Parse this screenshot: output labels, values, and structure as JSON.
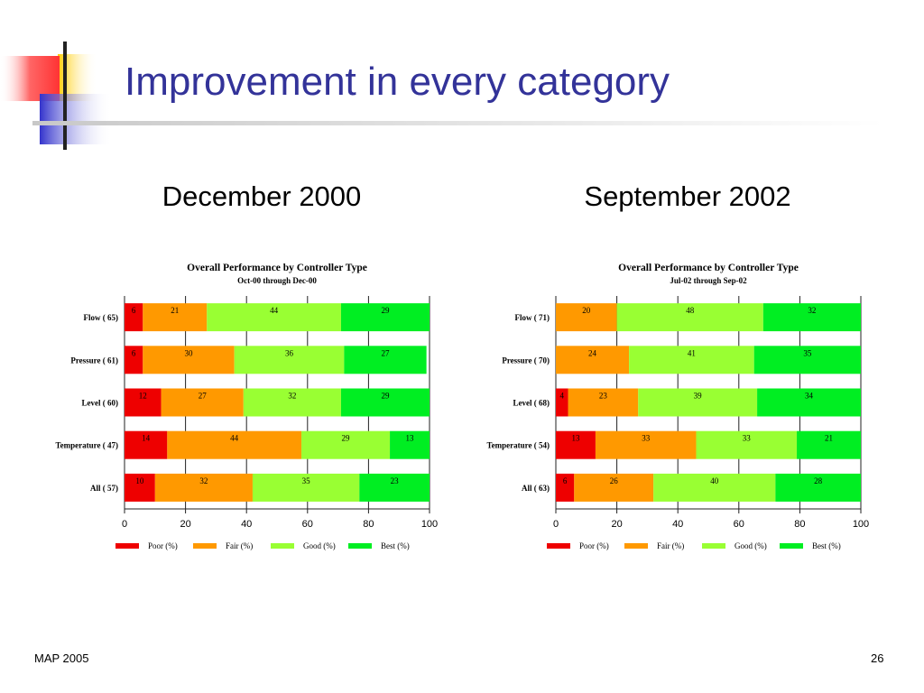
{
  "slide": {
    "title": "Improvement in every category",
    "footer_left": "MAP 2005",
    "page_number": "26"
  },
  "panels": [
    {
      "period": "December 2000"
    },
    {
      "period": "September 2002"
    }
  ],
  "chart_data": [
    {
      "type": "bar",
      "orientation": "horizontal",
      "stacked": true,
      "title": "Overall Performance by Controller Type",
      "subtitle": "Oct-00 through Dec-00",
      "categories": [
        "Flow ( 65)",
        "Pressure ( 61)",
        "Level ( 60)",
        "Temperature ( 47)",
        "All ( 57)"
      ],
      "series": [
        {
          "name": "Poor (%)",
          "color": "#ee0000",
          "values": [
            6,
            6,
            12,
            14,
            10
          ]
        },
        {
          "name": "Fair (%)",
          "color": "#ff9900",
          "values": [
            21,
            30,
            27,
            44,
            32
          ]
        },
        {
          "name": "Good (%)",
          "color": "#99ff33",
          "values": [
            44,
            36,
            32,
            29,
            35
          ]
        },
        {
          "name": "Best (%)",
          "color": "#00ee22",
          "values": [
            29,
            27,
            29,
            13,
            23
          ]
        }
      ],
      "xlim": [
        0,
        100
      ],
      "x_ticks": [
        "0",
        "20",
        "40",
        "60",
        "80",
        "100"
      ],
      "grid": "vertical",
      "legend_position": "bottom"
    },
    {
      "type": "bar",
      "orientation": "horizontal",
      "stacked": true,
      "title": "Overall Performance by Controller Type",
      "subtitle": "Jul-02 through Sep-02",
      "categories": [
        "Flow ( 71)",
        "Pressure ( 70)",
        "Level ( 68)",
        "Temperature ( 54)",
        "All ( 63)"
      ],
      "series": [
        {
          "name": "Poor (%)",
          "color": "#ee0000",
          "values": [
            0,
            0,
            4,
            13,
            6
          ]
        },
        {
          "name": "Fair (%)",
          "color": "#ff9900",
          "values": [
            20,
            24,
            23,
            33,
            26
          ]
        },
        {
          "name": "Good (%)",
          "color": "#99ff33",
          "values": [
            48,
            41,
            39,
            33,
            40
          ]
        },
        {
          "name": "Best (%)",
          "color": "#00ee22",
          "values": [
            32,
            35,
            34,
            21,
            28
          ]
        }
      ],
      "xlim": [
        0,
        100
      ],
      "x_ticks": [
        "0",
        "20",
        "40",
        "60",
        "80",
        "100"
      ],
      "grid": "vertical",
      "legend_position": "bottom"
    }
  ]
}
